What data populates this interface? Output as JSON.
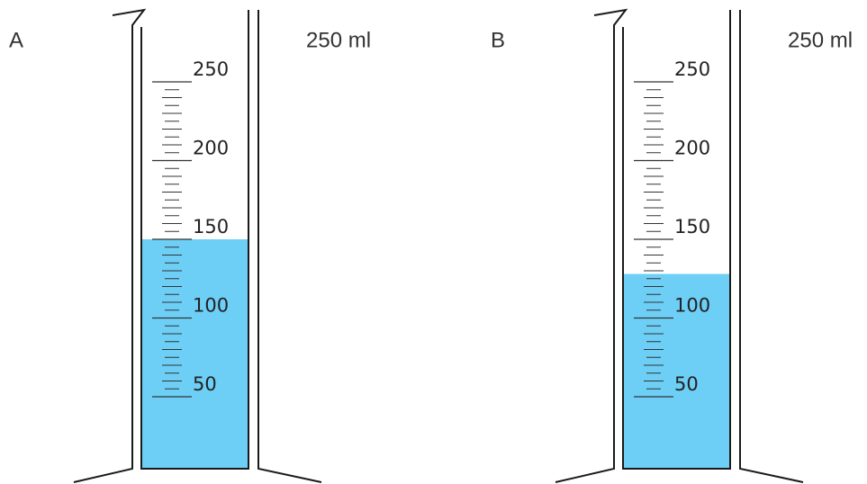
{
  "cylinders": [
    {
      "label": "A",
      "capacity": "250 ml",
      "ticks": [
        50,
        100,
        150,
        200,
        250
      ],
      "level": 150
    },
    {
      "label": "B",
      "capacity": "250 ml",
      "ticks": [
        50,
        100,
        150,
        200,
        250
      ],
      "level": 128
    }
  ]
}
